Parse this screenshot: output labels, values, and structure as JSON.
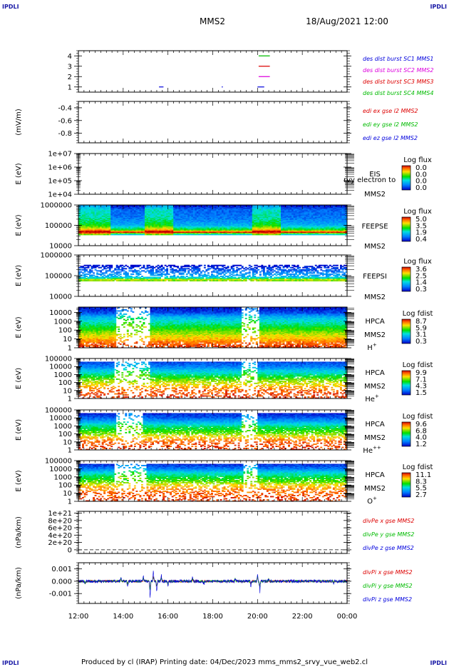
{
  "corners": [
    "IPDLI",
    "IPDLI",
    "IPDLI",
    "IPDLI"
  ],
  "header": {
    "spacecraft": "MMS2",
    "datetime": "18/Aug/2021 12:00"
  },
  "footer": "Produced by cl (IRAP)   Printing date: 04/Dec/2023   mms_mms2_srvy_vue_web2.cl",
  "time_axis": {
    "range_hours": [
      12,
      24
    ],
    "ticks": [
      12,
      14,
      16,
      18,
      20,
      22,
      24
    ],
    "tick_labels": [
      "12:00",
      "14:00",
      "16:00",
      "18:00",
      "20:00",
      "22:00",
      "00:00"
    ]
  },
  "colors": {
    "blue": "#0000dd",
    "green": "#00bb00",
    "red": "#dd0000",
    "magenta": "#dd00dd",
    "frame": "#000000"
  },
  "chart_data": [
    {
      "type": "line",
      "panel": "burst",
      "ylim": [
        0.5,
        4.5
      ],
      "yticks": [
        1,
        2,
        3,
        4
      ],
      "ytick_labels": [
        "1",
        "2",
        "3",
        "4"
      ],
      "legend": [
        {
          "text": "des dist burst SC1 MMS1",
          "color": "#0000dd"
        },
        {
          "text": "des dist burst SC2 MMS2",
          "color": "#dd00dd"
        },
        {
          "text": "des dist burst SC3 MMS3",
          "color": "#dd0000"
        },
        {
          "text": "des dist burst SC4 MMS4",
          "color": "#00bb00"
        }
      ],
      "segments": [
        {
          "y": 4,
          "t": [
            20.05,
            20.55
          ],
          "color": "#00bb00"
        },
        {
          "y": 3,
          "t": [
            20.05,
            20.55
          ],
          "color": "#dd0000"
        },
        {
          "y": 2,
          "t": [
            20.05,
            20.55
          ],
          "color": "#dd00dd"
        },
        {
          "y": 1,
          "t": [
            20.0,
            20.3
          ],
          "color": "#0000dd"
        },
        {
          "y": 1,
          "t": [
            15.6,
            15.8
          ],
          "color": "#0000dd"
        },
        {
          "y": 1,
          "t": [
            18.4,
            18.45
          ],
          "color": "#0000dd"
        }
      ]
    },
    {
      "type": "line",
      "panel": "edi",
      "ylabel": "(mV/m)",
      "ylim": [
        -0.95,
        -0.3
      ],
      "yticks": [
        -0.4,
        -0.6,
        -0.8
      ],
      "ytick_labels": [
        "-0.4",
        "-0.6",
        "-0.8"
      ],
      "legend": [
        {
          "text": "edi ex gse l2 MMS2",
          "color": "#dd0000"
        },
        {
          "text": "edi ey gse l2 MMS2",
          "color": "#00bb00"
        },
        {
          "text": "edi ez gse l2 MMS2",
          "color": "#0000dd"
        }
      ]
    },
    {
      "type": "heatmap",
      "panel": "eis",
      "ylabel": "E (eV)",
      "yscale": "log",
      "ylim": [
        10000,
        10000000
      ],
      "yticks": [
        10000,
        100000,
        1000000,
        10000000
      ],
      "ytick_labels": [
        "1e+04",
        "1e+05",
        "1e+06",
        "1e+07"
      ],
      "label": [
        "EIS",
        "MMS2"
      ],
      "overflow_label": "rvy electron to",
      "colorbar": {
        "title": "Log flux",
        "labels": [
          "0.0",
          "0.0",
          "0.0",
          "0.0"
        ]
      },
      "empty": true
    },
    {
      "type": "heatmap",
      "panel": "feepse",
      "ylabel": "E (eV)",
      "yscale": "log",
      "ylim": [
        10000,
        1000000
      ],
      "yticks": [
        10000,
        100000,
        1000000
      ],
      "ytick_labels": [
        "10000",
        "100000",
        "1000000"
      ],
      "label": [
        "FEEPSE",
        "MMS2"
      ],
      "colorbar": {
        "title": "Log flux",
        "labels": [
          "5.0",
          "3.5",
          "1.9",
          "0.4"
        ]
      },
      "profile": [
        [
          1000000,
          0.0
        ],
        [
          600000,
          0.15
        ],
        [
          200000,
          0.2
        ],
        [
          100000,
          0.3
        ],
        [
          60000,
          0.55
        ],
        [
          45000,
          1.0
        ],
        [
          38000,
          0.45
        ],
        [
          33000,
          0.3
        ]
      ],
      "enhancements": [
        [
          12.0,
          13.4
        ],
        [
          15.0,
          16.2
        ],
        [
          19.8,
          21.0
        ]
      ]
    },
    {
      "type": "heatmap",
      "panel": "feepsi",
      "ylabel": "E (eV)",
      "yscale": "log",
      "ylim": [
        10000,
        1000000
      ],
      "yticks": [
        10000,
        100000,
        1000000
      ],
      "ytick_labels": [
        "10000",
        "100000",
        "1000000"
      ],
      "label": [
        "FEEPSI",
        "MMS2"
      ],
      "colorbar": {
        "title": "Log flux",
        "labels": [
          "3.6",
          "2.5",
          "1.4",
          "0.3"
        ]
      },
      "profile": [
        [
          330000,
          0.0
        ],
        [
          180000,
          0.15
        ],
        [
          90000,
          0.3
        ],
        [
          70000,
          0.5
        ],
        [
          60000,
          0.95
        ],
        [
          55000,
          0.2
        ]
      ],
      "enhancements": []
    },
    {
      "type": "heatmap",
      "panel": "hpca_h",
      "ylabel": "E (eV)",
      "yscale": "log",
      "ylim": [
        1,
        40000
      ],
      "yticks": [
        1,
        10,
        100,
        1000,
        10000
      ],
      "ytick_labels": [
        "1",
        "10",
        "100",
        "1000",
        "10000"
      ],
      "label": [
        "HPCA",
        "MMS2",
        "H",
        "+"
      ],
      "colorbar": {
        "title": "Log fdist",
        "labels": [
          "8.7",
          "5.9",
          "3.1",
          "0.3"
        ]
      },
      "profile": [
        [
          40000,
          0.03
        ],
        [
          10000,
          0.1
        ],
        [
          3000,
          0.3
        ],
        [
          1000,
          0.4
        ],
        [
          300,
          0.5
        ],
        [
          100,
          0.6
        ],
        [
          30,
          0.7
        ],
        [
          10,
          0.8
        ],
        [
          3,
          0.9
        ],
        [
          1,
          0.95
        ]
      ],
      "gaps": [
        [
          13.7,
          15.2
        ],
        [
          19.3,
          20.1
        ]
      ]
    },
    {
      "type": "heatmap",
      "panel": "hpca_he",
      "ylabel": "E (eV)",
      "yscale": "log",
      "ylim": [
        1,
        100000
      ],
      "yticks": [
        1,
        10,
        100,
        1000,
        10000,
        100000
      ],
      "ytick_labels": [
        "1",
        "10",
        "100",
        "1000",
        "10000",
        "100000"
      ],
      "label": [
        "HPCA",
        "MMS2",
        "He",
        "+"
      ],
      "colorbar": {
        "title": "Log fdist",
        "labels": [
          "9.9",
          "7.1",
          "4.3",
          "1.5"
        ]
      },
      "profile": [
        [
          40000,
          0.1
        ],
        [
          10000,
          0.2
        ],
        [
          3000,
          0.35
        ],
        [
          1000,
          0.45
        ],
        [
          300,
          0.6
        ],
        [
          100,
          0.7
        ],
        [
          30,
          0.8
        ],
        [
          10,
          0.9
        ],
        [
          1,
          0.95
        ]
      ],
      "gaps": [
        [
          13.6,
          15.2
        ],
        [
          19.3,
          20.0
        ]
      ]
    },
    {
      "type": "heatmap",
      "panel": "hpca_hepp",
      "ylabel": "E (eV)",
      "yscale": "log",
      "ylim": [
        1,
        100000
      ],
      "yticks": [
        1,
        10,
        100,
        1000,
        10000,
        100000
      ],
      "ytick_labels": [
        "1",
        "10",
        "100",
        "1000",
        "10000",
        "100000"
      ],
      "label": [
        "HPCA",
        "MMS2",
        "He",
        "++"
      ],
      "colorbar": {
        "title": "Log fdist",
        "labels": [
          "9.6",
          "6.8",
          "4.0",
          "1.2"
        ]
      },
      "profile": [
        [
          40000,
          0.05
        ],
        [
          10000,
          0.15
        ],
        [
          3000,
          0.3
        ],
        [
          1000,
          0.45
        ],
        [
          300,
          0.55
        ],
        [
          100,
          0.65
        ],
        [
          30,
          0.8
        ],
        [
          10,
          0.9
        ],
        [
          1,
          0.95
        ]
      ],
      "gaps": [
        [
          13.7,
          14.9
        ],
        [
          19.3,
          20.0
        ]
      ]
    },
    {
      "type": "heatmap",
      "panel": "hpca_o",
      "ylabel": "E (eV)",
      "yscale": "log",
      "ylim": [
        1,
        100000
      ],
      "yticks": [
        1,
        10,
        100,
        1000,
        10000,
        100000
      ],
      "ytick_labels": [
        "1",
        "10",
        "100",
        "1000",
        "10000",
        "100000"
      ],
      "label": [
        "HPCA",
        "MMS2",
        "O",
        "+"
      ],
      "colorbar": {
        "title": "Log fdist",
        "labels": [
          "11.1",
          "8.3",
          "5.5",
          "2.7"
        ]
      },
      "profile": [
        [
          40000,
          0.05
        ],
        [
          10000,
          0.2
        ],
        [
          3000,
          0.4
        ],
        [
          1000,
          0.5
        ],
        [
          300,
          0.6
        ],
        [
          100,
          0.75
        ],
        [
          30,
          0.85
        ],
        [
          10,
          0.9
        ],
        [
          1,
          0.95
        ]
      ],
      "gaps": [
        [
          13.6,
          15.0
        ],
        [
          19.4,
          20.0
        ]
      ]
    },
    {
      "type": "line",
      "panel": "divpe",
      "ylabel": "(nPa/km)",
      "ylim": [
        -1e+20,
        1.05e+21
      ],
      "yticks": [
        0,
        2e+20,
        4e+20,
        6e+20,
        8e+20,
        1e+21
      ],
      "ytick_labels": [
        "0",
        "2e+20",
        "4e+20",
        "6e+20",
        "8e+20",
        "1e+21"
      ],
      "legend": [
        {
          "text": "divPe x gse MMS2",
          "color": "#dd0000"
        },
        {
          "text": "divPe y gse MMS2",
          "color": "#00bb00"
        },
        {
          "text": "divPe z gse MMS2",
          "color": "#0000dd"
        }
      ],
      "zero_line": true
    },
    {
      "type": "line",
      "panel": "divpi",
      "ylabel": "(nPa/km)",
      "ylim": [
        -0.0018,
        0.0015
      ],
      "yticks": [
        0.001,
        0,
        -0.001
      ],
      "ytick_labels": [
        "0.001",
        "0.000",
        "-0.001"
      ],
      "legend": [
        {
          "text": "divPi x gse MMS2",
          "color": "#dd0000"
        },
        {
          "text": "divPi y gse MMS2",
          "color": "#00bb00"
        },
        {
          "text": "divPi z gse MMS2",
          "color": "#0000dd"
        }
      ],
      "noise_amplitude": 0.00012,
      "spikes": [
        [
          12.3,
          -0.0003
        ],
        [
          13.9,
          0.0004
        ],
        [
          14.2,
          -0.0006
        ],
        [
          14.9,
          0.0005
        ],
        [
          15.2,
          -0.0011
        ],
        [
          15.35,
          0.0009
        ],
        [
          15.5,
          -0.0008
        ],
        [
          15.7,
          0.0006
        ],
        [
          16.0,
          -0.0004
        ],
        [
          17.1,
          0.0004
        ],
        [
          17.6,
          -0.0003
        ],
        [
          19.0,
          0.0003
        ],
        [
          19.7,
          -0.0005
        ],
        [
          20.0,
          0.0006
        ],
        [
          20.1,
          -0.0009
        ],
        [
          20.5,
          0.0003
        ],
        [
          23.4,
          -0.0002
        ]
      ]
    }
  ]
}
